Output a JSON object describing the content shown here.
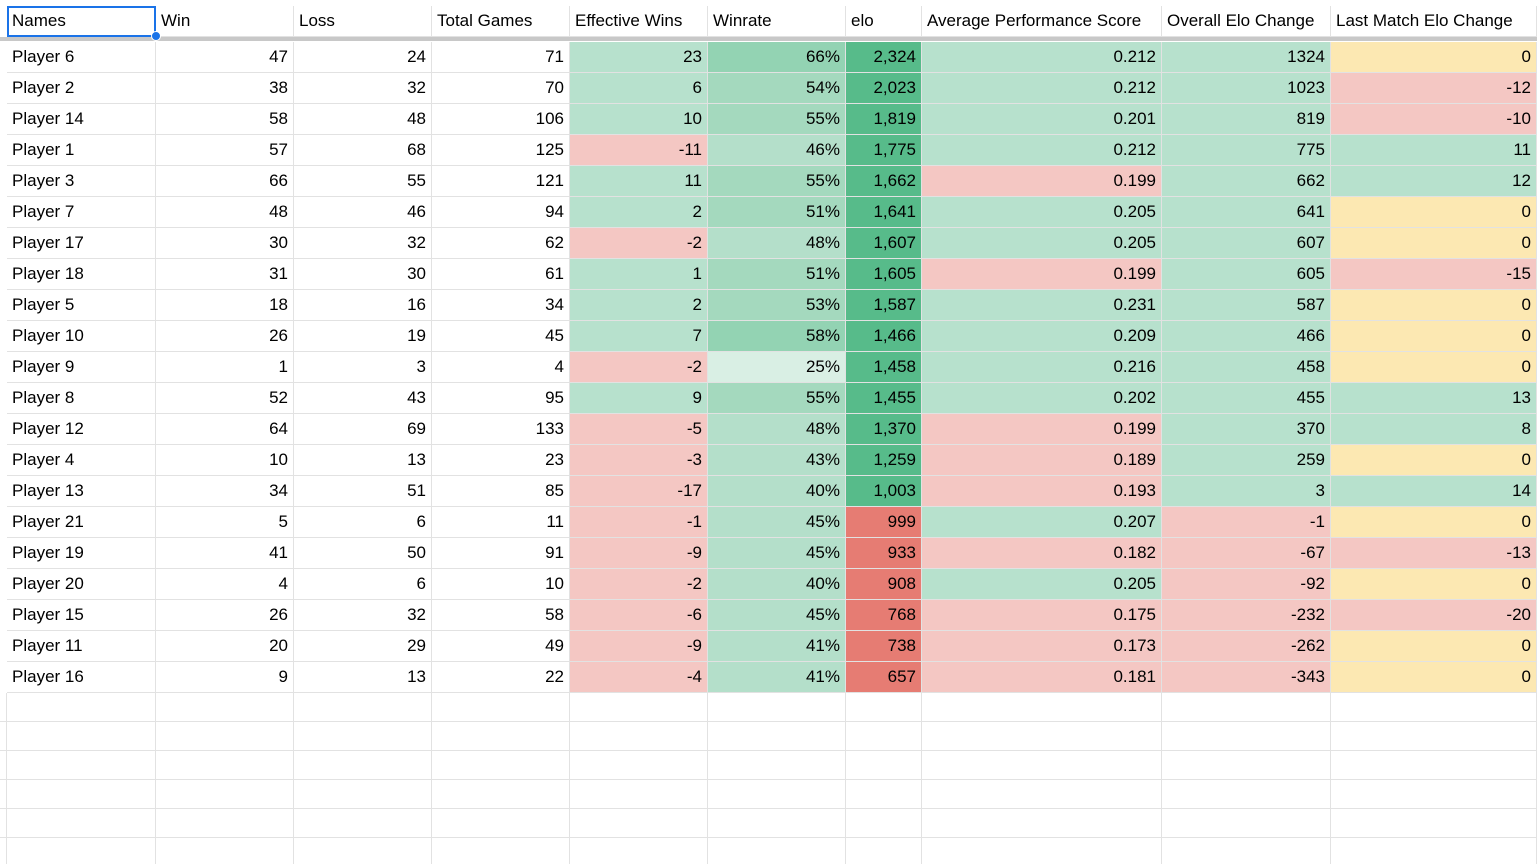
{
  "table": {
    "headers": [
      "Names",
      "Win",
      "Loss",
      "Total Games",
      "Effective Wins",
      "Winrate",
      "elo",
      "Average Performance Score",
      "Overall Elo Change",
      "Last Match Elo Change"
    ],
    "rows": [
      [
        "Player 6",
        "47",
        "24",
        "71",
        "23",
        "66%",
        "2,324",
        "0.212",
        "1324",
        "0"
      ],
      [
        "Player 2",
        "38",
        "32",
        "70",
        "6",
        "54%",
        "2,023",
        "0.212",
        "1023",
        "-12"
      ],
      [
        "Player 14",
        "58",
        "48",
        "106",
        "10",
        "55%",
        "1,819",
        "0.201",
        "819",
        "-10"
      ],
      [
        "Player 1",
        "57",
        "68",
        "125",
        "-11",
        "46%",
        "1,775",
        "0.212",
        "775",
        "11"
      ],
      [
        "Player 3",
        "66",
        "55",
        "121",
        "11",
        "55%",
        "1,662",
        "0.199",
        "662",
        "12"
      ],
      [
        "Player 7",
        "48",
        "46",
        "94",
        "2",
        "51%",
        "1,641",
        "0.205",
        "641",
        "0"
      ],
      [
        "Player 17",
        "30",
        "32",
        "62",
        "-2",
        "48%",
        "1,607",
        "0.205",
        "607",
        "0"
      ],
      [
        "Player 18",
        "31",
        "30",
        "61",
        "1",
        "51%",
        "1,605",
        "0.199",
        "605",
        "-15"
      ],
      [
        "Player 5",
        "18",
        "16",
        "34",
        "2",
        "53%",
        "1,587",
        "0.231",
        "587",
        "0"
      ],
      [
        "Player 10",
        "26",
        "19",
        "45",
        "7",
        "58%",
        "1,466",
        "0.209",
        "466",
        "0"
      ],
      [
        "Player 9",
        "1",
        "3",
        "4",
        "-2",
        "25%",
        "1,458",
        "0.216",
        "458",
        "0"
      ],
      [
        "Player 8",
        "52",
        "43",
        "95",
        "9",
        "55%",
        "1,455",
        "0.202",
        "455",
        "13"
      ],
      [
        "Player 12",
        "64",
        "69",
        "133",
        "-5",
        "48%",
        "1,370",
        "0.199",
        "370",
        "8"
      ],
      [
        "Player 4",
        "10",
        "13",
        "23",
        "-3",
        "43%",
        "1,259",
        "0.189",
        "259",
        "0"
      ],
      [
        "Player 13",
        "34",
        "51",
        "85",
        "-17",
        "40%",
        "1,003",
        "0.193",
        "3",
        "14"
      ],
      [
        "Player 21",
        "5",
        "6",
        "11",
        "-1",
        "45%",
        "999",
        "0.207",
        "-1",
        "0"
      ],
      [
        "Player 19",
        "41",
        "50",
        "91",
        "-9",
        "45%",
        "933",
        "0.182",
        "-67",
        "-13"
      ],
      [
        "Player 20",
        "4",
        "6",
        "10",
        "-2",
        "40%",
        "908",
        "0.205",
        "-92",
        "0"
      ],
      [
        "Player 15",
        "26",
        "32",
        "58",
        "-6",
        "45%",
        "768",
        "0.175",
        "-232",
        "-20"
      ],
      [
        "Player 11",
        "20",
        "29",
        "49",
        "-9",
        "41%",
        "738",
        "0.173",
        "-262",
        "0"
      ],
      [
        "Player 16",
        "9",
        "13",
        "22",
        "-4",
        "41%",
        "657",
        "0.181",
        "-343",
        "0"
      ]
    ]
  }
}
